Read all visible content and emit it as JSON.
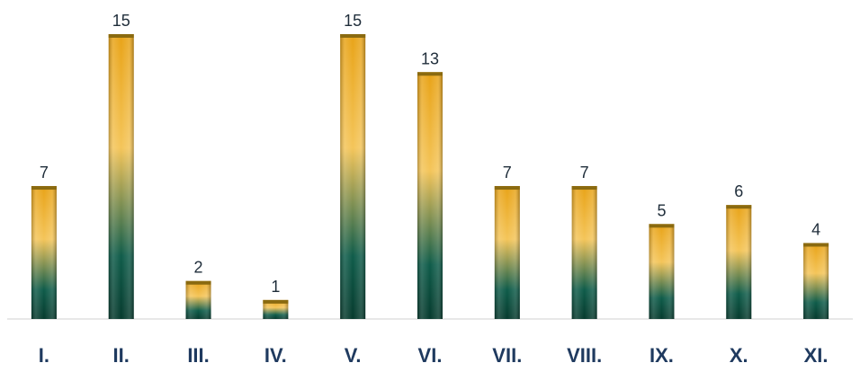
{
  "chart_data": {
    "type": "bar",
    "title": "",
    "xlabel": "",
    "ylabel": "",
    "categories": [
      "I.",
      "II.",
      "III.",
      "IV.",
      "V.",
      "VI.",
      "VII.",
      "VIII.",
      "IX.",
      "X.",
      "XI."
    ],
    "values": [
      7,
      15,
      2,
      1,
      15,
      13,
      7,
      7,
      5,
      6,
      4
    ],
    "ylim": [
      0,
      15
    ],
    "grid": false,
    "legend": "none",
    "data_labels": true,
    "colors": {
      "bar_top": "#e8a317",
      "bar_mid": "#f4c55a",
      "bar_bottom": "#0f5c4a",
      "bar_base": "#073b2e",
      "bar_cap": "#8a6a10",
      "baseline": "#d0d0d0",
      "category_text": "#1f3a5f",
      "value_text": "#1f2d3a"
    }
  }
}
